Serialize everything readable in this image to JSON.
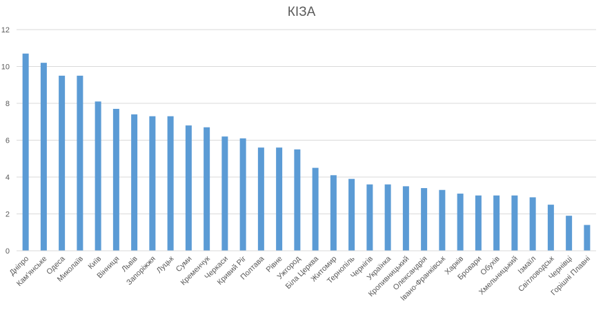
{
  "chart_data": {
    "type": "bar",
    "title": "КІЗА",
    "xlabel": "",
    "ylabel": "",
    "ylim": [
      0,
      12
    ],
    "yticks": [
      0,
      2,
      4,
      6,
      8,
      10,
      12
    ],
    "grid": true,
    "legend": "none",
    "bar_color": "#5b9bd5",
    "categories": [
      "Дніпро",
      "Кам'янське",
      "Одеса",
      "Миколаїв",
      "Київ",
      "Вінниця",
      "Львів",
      "Запоріжжя",
      "Луцьк",
      "Суми",
      "Кременчук",
      "Черкаси",
      "Кривий Ріг",
      "Полтава",
      "Рівне",
      "Ужгород",
      "Біла Церква",
      "Житомир",
      "Тернопіль",
      "Чернігів",
      "Українка",
      "Кропивницький",
      "Олександрія",
      "Івано-Франківськ",
      "Харків",
      "Бровари",
      "Обухів",
      "Хмельницький",
      "Ізмаїл",
      "Світловодськ",
      "Чернівці",
      "Горішні Плавні"
    ],
    "values": [
      10.7,
      10.2,
      9.5,
      9.5,
      8.1,
      7.7,
      7.4,
      7.3,
      7.3,
      6.8,
      6.7,
      6.2,
      6.1,
      5.6,
      5.6,
      5.5,
      4.5,
      4.1,
      3.9,
      3.6,
      3.6,
      3.5,
      3.4,
      3.3,
      3.1,
      3.0,
      3.0,
      3.0,
      2.9,
      2.5,
      1.9,
      1.4
    ]
  }
}
